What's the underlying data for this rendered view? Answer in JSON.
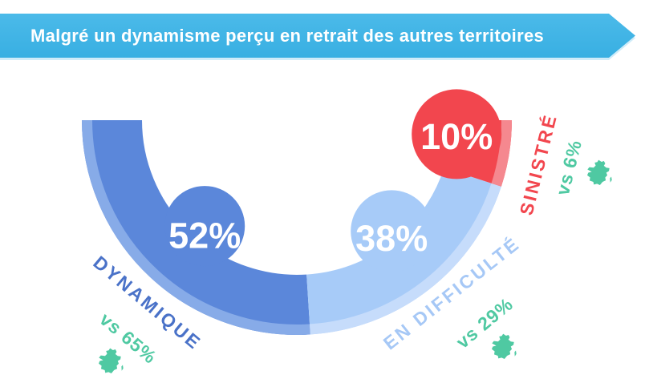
{
  "header": {
    "title": "Malgré un dynamisme perçu en retrait des autres territoires",
    "background_color": "#3fb4e6",
    "text_color": "#ffffff"
  },
  "chart_data": {
    "type": "pie",
    "variant": "semicircle-gauge-donut",
    "sweep_deg": 180,
    "title": "Malgré un dynamisme perçu en retrait des autres territoires",
    "legend_position": "around-arc",
    "background": "#ffffff",
    "segments": [
      {
        "label": "DYNAMIQUE",
        "value": 52,
        "display": "52%",
        "comparison": "vs 65%",
        "color": "#5b87da",
        "rim_color": "#87abe8",
        "label_color": "#4a72c8"
      },
      {
        "label": "EN DIFFICULTÉ",
        "value": 38,
        "display": "38%",
        "comparison": "vs 29%",
        "color": "#a7cbf8",
        "rim_color": "#c6dcfb",
        "label_color": "#a6c8f6"
      },
      {
        "label": "SINISTRÉ",
        "value": 10,
        "display": "10%",
        "comparison": "vs 6%",
        "color": "#f2464e",
        "rim_color": "#f5888f",
        "label_color": "#f2464e"
      }
    ],
    "comparison_color": "#4fc9a2",
    "comparison_icon": "france-map-icon",
    "value_text_color": "#ffffff"
  }
}
